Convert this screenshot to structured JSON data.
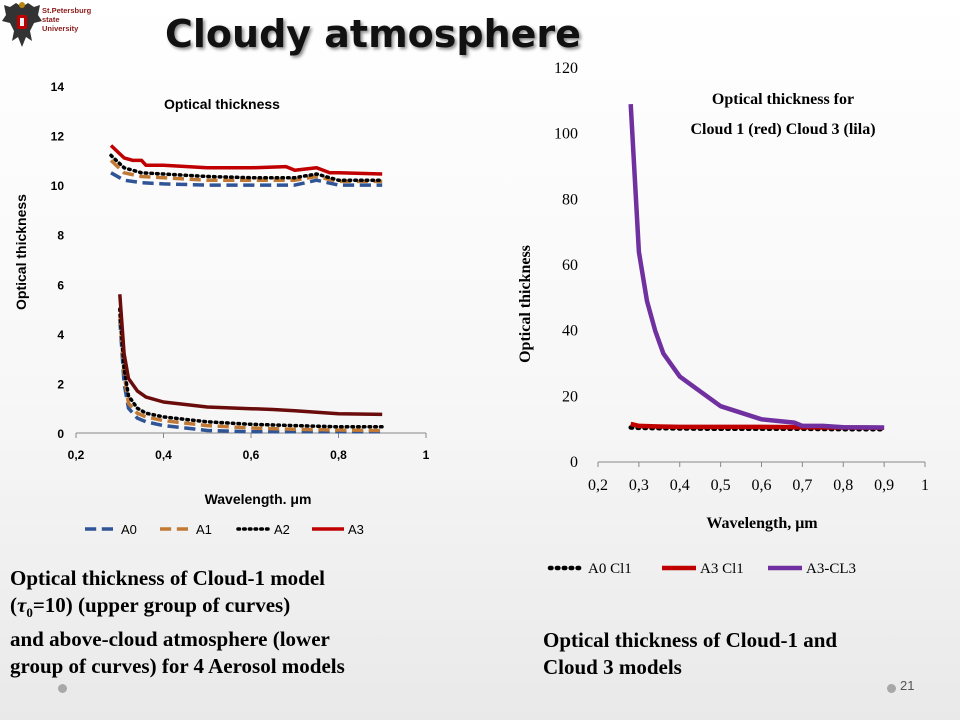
{
  "header": {
    "logo_lines": [
      "St.Petersburg",
      "state",
      "University"
    ],
    "title": "Cloudy atmosphere"
  },
  "slide_number": "21",
  "captions": {
    "left_line1": "Optical thickness of  Cloud-1 model",
    "left_line2_pre": "(",
    "left_line2_tau": "τ",
    "left_line2_sub": "0",
    "left_line2_post": "=10) (upper group of curves)",
    "left_line3": "and above-cloud atmosphere  (lower",
    "left_line4": "group of curves) for 4 Aerosol models",
    "right_line1": "Optical thickness of  Cloud-1 and",
    "right_line2": "Cloud 3 models"
  },
  "colors": {
    "A0": "#2f5597",
    "A1": "#c07a35",
    "A2": "#000000",
    "A3": "#c00000",
    "A0_lower": "#2f5597",
    "A3_lower": "#6b0c0c",
    "A3_CL3": "#7030a0"
  },
  "chart_data": [
    {
      "type": "line",
      "title": "Optical thickness",
      "xlabel": "Wavelength. μm",
      "ylabel": "Optical thickness",
      "xlim": [
        0.2,
        1
      ],
      "ylim": [
        0,
        14
      ],
      "xticks": [
        "0,2",
        "0,4",
        "0,6",
        "0,8",
        "1"
      ],
      "yticks": [
        "0",
        "2",
        "4",
        "6",
        "8",
        "10",
        "12",
        "14"
      ],
      "legend_position": "bottom",
      "legend": [
        "A0",
        "A1",
        "A2",
        "A3"
      ],
      "series": [
        {
          "name": "A0",
          "group": "upper",
          "style": "dash",
          "color": "#2f5597",
          "x": [
            0.28,
            0.31,
            0.35,
            0.4,
            0.5,
            0.6,
            0.7,
            0.75,
            0.8,
            0.9
          ],
          "y": [
            10.5,
            10.2,
            10.1,
            10.05,
            10.0,
            10.0,
            10.0,
            10.2,
            10.0,
            10.0
          ]
        },
        {
          "name": "A1",
          "group": "upper",
          "style": "dash",
          "color": "#c07a35",
          "x": [
            0.28,
            0.31,
            0.35,
            0.4,
            0.5,
            0.6,
            0.7,
            0.75,
            0.8,
            0.9
          ],
          "y": [
            11.0,
            10.5,
            10.35,
            10.3,
            10.2,
            10.2,
            10.2,
            10.35,
            10.15,
            10.15
          ]
        },
        {
          "name": "A2",
          "group": "upper",
          "style": "dot",
          "color": "#000000",
          "x": [
            0.28,
            0.31,
            0.35,
            0.4,
            0.5,
            0.6,
            0.7,
            0.75,
            0.8,
            0.9
          ],
          "y": [
            11.2,
            10.7,
            10.5,
            10.45,
            10.35,
            10.3,
            10.3,
            10.45,
            10.2,
            10.2
          ]
        },
        {
          "name": "A3",
          "group": "upper",
          "style": "solid",
          "color": "#c00000",
          "x": [
            0.28,
            0.31,
            0.33,
            0.35,
            0.36,
            0.4,
            0.5,
            0.6,
            0.68,
            0.7,
            0.75,
            0.78,
            0.8,
            0.9
          ],
          "y": [
            11.6,
            11.1,
            11.0,
            11.0,
            10.8,
            10.8,
            10.7,
            10.7,
            10.75,
            10.6,
            10.7,
            10.5,
            10.5,
            10.45
          ]
        },
        {
          "name": "A0",
          "group": "lower",
          "style": "dash",
          "color": "#2f5597",
          "x": [
            0.3,
            0.31,
            0.32,
            0.34,
            0.36,
            0.4,
            0.45,
            0.5,
            0.6,
            0.7,
            0.8,
            0.9
          ],
          "y": [
            4.6,
            2.0,
            1.0,
            0.6,
            0.45,
            0.3,
            0.2,
            0.1,
            0.05,
            0.05,
            0.05,
            0.05
          ]
        },
        {
          "name": "A1",
          "group": "lower",
          "style": "dash",
          "color": "#c07a35",
          "x": [
            0.3,
            0.31,
            0.32,
            0.34,
            0.36,
            0.4,
            0.45,
            0.5,
            0.6,
            0.7,
            0.8,
            0.9
          ],
          "y": [
            4.8,
            2.4,
            1.2,
            0.8,
            0.65,
            0.5,
            0.4,
            0.3,
            0.2,
            0.15,
            0.12,
            0.1
          ]
        },
        {
          "name": "A2",
          "group": "lower",
          "style": "dot",
          "color": "#000000",
          "x": [
            0.3,
            0.31,
            0.32,
            0.34,
            0.36,
            0.4,
            0.45,
            0.5,
            0.6,
            0.7,
            0.8,
            0.9
          ],
          "y": [
            5.0,
            2.6,
            1.5,
            1.0,
            0.8,
            0.65,
            0.55,
            0.45,
            0.35,
            0.3,
            0.25,
            0.25
          ]
        },
        {
          "name": "A3",
          "group": "lower",
          "style": "solid",
          "color": "#6b0c0c",
          "x": [
            0.3,
            0.31,
            0.32,
            0.34,
            0.36,
            0.4,
            0.45,
            0.5,
            0.6,
            0.65,
            0.7,
            0.8,
            0.9
          ],
          "y": [
            5.6,
            3.2,
            2.2,
            1.7,
            1.45,
            1.25,
            1.15,
            1.05,
            0.98,
            0.95,
            0.9,
            0.78,
            0.75
          ]
        }
      ]
    },
    {
      "type": "line",
      "title_lines": [
        "Optical thickness for",
        "Cloud 1 (red) Cloud 3 (lila)"
      ],
      "xlabel": "Wavelength, μm",
      "ylabel": "Optical thickness",
      "xlim": [
        0.2,
        1
      ],
      "ylim": [
        0,
        120
      ],
      "xticks": [
        "0,2",
        "0,3",
        "0,4",
        "0,5",
        "0,6",
        "0,7",
        "0,8",
        "0,9",
        "1"
      ],
      "yticks": [
        "0",
        "20",
        "40",
        "60",
        "80",
        "100",
        "120"
      ],
      "legend_position": "bottom",
      "legend": [
        "A0 Cl1",
        "A3 Cl1",
        "A3-CL3"
      ],
      "series": [
        {
          "name": "A0 Cl1",
          "style": "dot",
          "color": "#000000",
          "x": [
            0.28,
            0.3,
            0.35,
            0.4,
            0.5,
            0.6,
            0.7,
            0.8,
            0.9
          ],
          "y": [
            10.5,
            10.4,
            10.3,
            10.2,
            10.1,
            10.1,
            10.1,
            10.0,
            10.0
          ]
        },
        {
          "name": "A3 Cl1",
          "style": "solid",
          "color": "#c00000",
          "x": [
            0.28,
            0.3,
            0.35,
            0.4,
            0.5,
            0.6,
            0.7,
            0.8,
            0.9
          ],
          "y": [
            11.6,
            11.0,
            10.8,
            10.7,
            10.7,
            10.7,
            10.6,
            10.5,
            10.45
          ]
        },
        {
          "name": "A3-CL3",
          "style": "solid",
          "color": "#7030a0",
          "x": [
            0.28,
            0.3,
            0.32,
            0.34,
            0.36,
            0.4,
            0.5,
            0.6,
            0.68,
            0.7,
            0.75,
            0.8,
            0.9
          ],
          "y": [
            109,
            64,
            49,
            40,
            33,
            26,
            17,
            13,
            12,
            11,
            11,
            10.6,
            10.5
          ]
        }
      ]
    }
  ]
}
